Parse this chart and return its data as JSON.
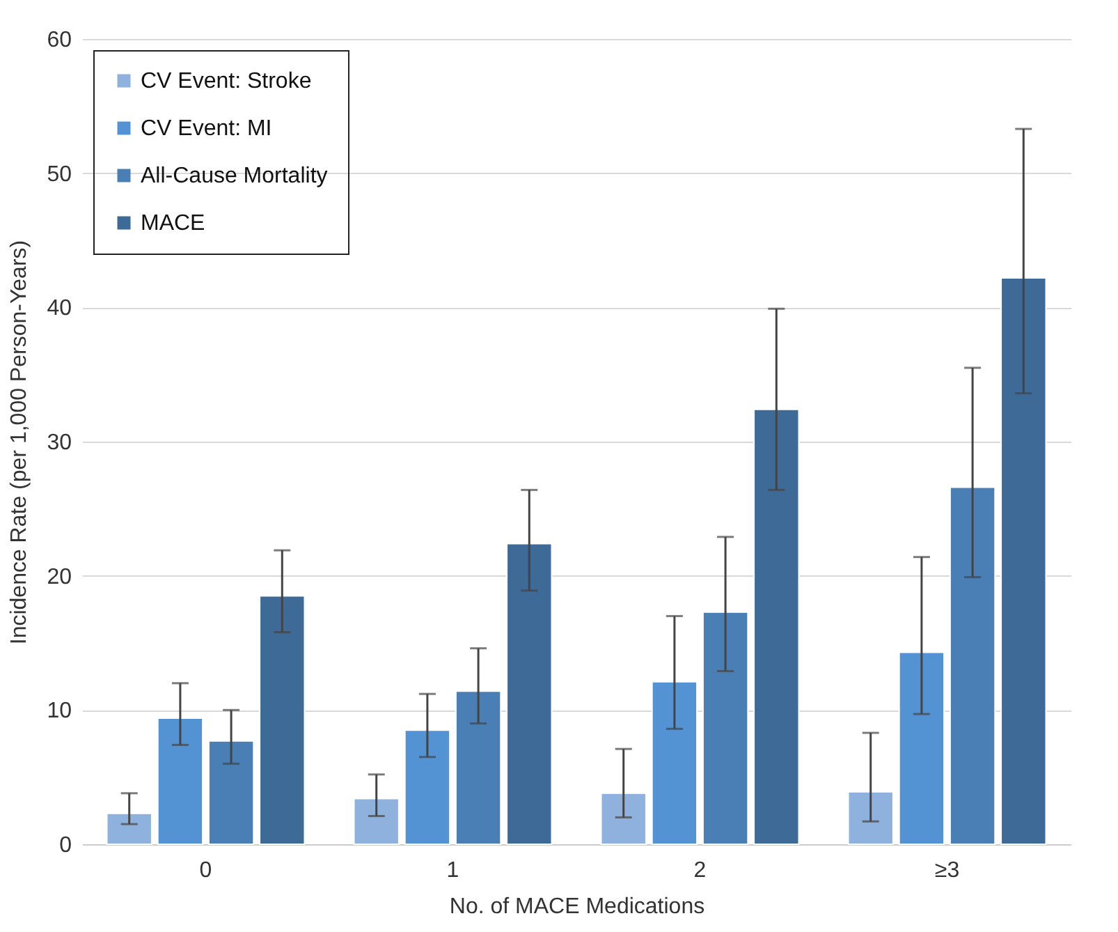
{
  "chart_data": {
    "type": "bar",
    "xlabel": "No. of MACE Medications",
    "ylabel": "Incidence Rate (per 1,000 Person-Years)",
    "categories": [
      "0",
      "1",
      "2",
      "≥3"
    ],
    "series": [
      {
        "name": "CV Event: Stroke",
        "color": "#8eb1dd",
        "values": [
          2.3,
          3.4,
          3.8,
          3.9
        ],
        "errors": [
          [
            1.5,
            3.8
          ],
          [
            2.1,
            5.2
          ],
          [
            2.0,
            7.1
          ],
          [
            1.7,
            8.3
          ]
        ]
      },
      {
        "name": "CV Event: MI",
        "color": "#5393d3",
        "values": [
          9.4,
          8.5,
          12.1,
          14.3
        ],
        "errors": [
          [
            7.4,
            12.0
          ],
          [
            6.5,
            11.2
          ],
          [
            8.6,
            17.0
          ],
          [
            9.7,
            21.4
          ]
        ]
      },
      {
        "name": "All-Cause Mortality",
        "color": "#4a7fb5",
        "values": [
          7.7,
          11.4,
          17.3,
          26.6
        ],
        "errors": [
          [
            6.0,
            10.0
          ],
          [
            9.0,
            14.6
          ],
          [
            12.9,
            22.9
          ],
          [
            19.9,
            35.5
          ]
        ]
      },
      {
        "name": "MACE",
        "color": "#3d6a96",
        "values": [
          18.5,
          22.4,
          32.4,
          42.2
        ],
        "errors": [
          [
            15.8,
            21.9
          ],
          [
            18.9,
            26.4
          ],
          [
            26.4,
            39.9
          ],
          [
            33.6,
            53.3
          ]
        ]
      }
    ],
    "ylim": [
      0,
      60
    ],
    "yticks": [
      0,
      10,
      20,
      30,
      40,
      50,
      60
    ],
    "grid": "y",
    "legend": "top left"
  }
}
